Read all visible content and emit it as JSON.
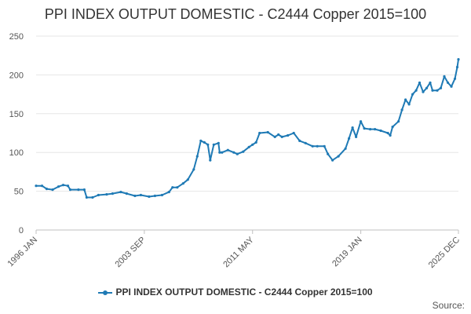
{
  "chart_data": {
    "type": "line",
    "title": "PPI INDEX OUTPUT DOMESTIC - C2444 Copper 2015=100",
    "xlabel": "",
    "ylabel": "",
    "ylim": [
      0,
      250
    ],
    "y_ticks": [
      "0",
      "50",
      "100",
      "150",
      "200",
      "250"
    ],
    "x_tick_labels": [
      {
        "date": "1996-01",
        "label": "1996 JAN"
      },
      {
        "date": "2003-09",
        "label": "2003 SEP"
      },
      {
        "date": "2011-05",
        "label": "2011 MAY"
      },
      {
        "date": "2019-01",
        "label": "2019 JAN"
      },
      {
        "date": "2025-12",
        "label": "2025 DEC"
      }
    ],
    "x_range": [
      "1996-01",
      "2025-12"
    ],
    "grid": "horizontal",
    "legend_position": "bottom",
    "series": [
      {
        "name": "PPI INDEX OUTPUT DOMESTIC - C2444 Copper 2015=100",
        "color": "#1f7ab5",
        "points": [
          [
            "1996-01",
            57
          ],
          [
            "1996-06",
            57
          ],
          [
            "1996-10",
            53
          ],
          [
            "1997-03",
            52
          ],
          [
            "1997-08",
            56
          ],
          [
            "1997-12",
            58
          ],
          [
            "1998-04",
            57
          ],
          [
            "1998-06",
            52
          ],
          [
            "1999-01",
            52
          ],
          [
            "1999-06",
            52
          ],
          [
            "1999-08",
            42
          ],
          [
            "2000-01",
            42
          ],
          [
            "2000-06",
            45
          ],
          [
            "2001-01",
            46
          ],
          [
            "2001-06",
            47
          ],
          [
            "2002-01",
            49
          ],
          [
            "2002-06",
            47
          ],
          [
            "2003-01",
            44
          ],
          [
            "2003-06",
            45
          ],
          [
            "2004-01",
            43
          ],
          [
            "2004-06",
            44
          ],
          [
            "2004-12",
            45
          ],
          [
            "2005-06",
            49
          ],
          [
            "2005-09",
            55
          ],
          [
            "2006-01",
            55
          ],
          [
            "2006-06",
            60
          ],
          [
            "2006-10",
            65
          ],
          [
            "2007-03",
            78
          ],
          [
            "2007-06",
            95
          ],
          [
            "2007-09",
            115
          ],
          [
            "2007-12",
            113
          ],
          [
            "2008-03",
            110
          ],
          [
            "2008-05",
            90
          ],
          [
            "2008-08",
            110
          ],
          [
            "2008-12",
            112
          ],
          [
            "2009-01",
            100
          ],
          [
            "2009-03",
            100
          ],
          [
            "2009-08",
            103
          ],
          [
            "2010-01",
            100
          ],
          [
            "2010-04",
            98
          ],
          [
            "2010-09",
            101
          ],
          [
            "2011-02",
            107
          ],
          [
            "2011-05",
            110
          ],
          [
            "2011-08",
            113
          ],
          [
            "2011-11",
            125
          ],
          [
            "2012-06",
            126
          ],
          [
            "2012-12",
            120
          ],
          [
            "2013-03",
            123
          ],
          [
            "2013-06",
            120
          ],
          [
            "2013-11",
            122
          ],
          [
            "2014-04",
            125
          ],
          [
            "2014-09",
            115
          ],
          [
            "2015-02",
            112
          ],
          [
            "2015-08",
            108
          ],
          [
            "2015-12",
            108
          ],
          [
            "2016-06",
            108
          ],
          [
            "2016-09",
            98
          ],
          [
            "2017-01",
            90
          ],
          [
            "2017-06",
            95
          ],
          [
            "2017-12",
            105
          ],
          [
            "2018-03",
            118
          ],
          [
            "2018-06",
            132
          ],
          [
            "2018-09",
            120
          ],
          [
            "2019-01",
            140
          ],
          [
            "2019-04",
            131
          ],
          [
            "2019-09",
            130
          ],
          [
            "2020-01",
            130
          ],
          [
            "2020-06",
            128
          ],
          [
            "2020-12",
            125
          ],
          [
            "2021-02",
            122
          ],
          [
            "2021-04",
            133
          ],
          [
            "2021-09",
            140
          ],
          [
            "2021-12",
            155
          ],
          [
            "2022-03",
            168
          ],
          [
            "2022-06",
            162
          ],
          [
            "2022-09",
            175
          ],
          [
            "2022-12",
            180
          ],
          [
            "2023-03",
            190
          ],
          [
            "2023-06",
            178
          ],
          [
            "2023-09",
            183
          ],
          [
            "2023-12",
            190
          ],
          [
            "2024-02",
            180
          ],
          [
            "2024-06",
            180
          ],
          [
            "2024-09",
            183
          ],
          [
            "2024-12",
            198
          ],
          [
            "2025-03",
            190
          ],
          [
            "2025-06",
            185
          ],
          [
            "2025-09",
            195
          ],
          [
            "2025-11",
            210
          ],
          [
            "2025-12",
            220
          ]
        ]
      }
    ]
  },
  "legend_label": "PPI INDEX OUTPUT DOMESTIC - C2444 Copper 2015=100",
  "source_label": "Source:"
}
